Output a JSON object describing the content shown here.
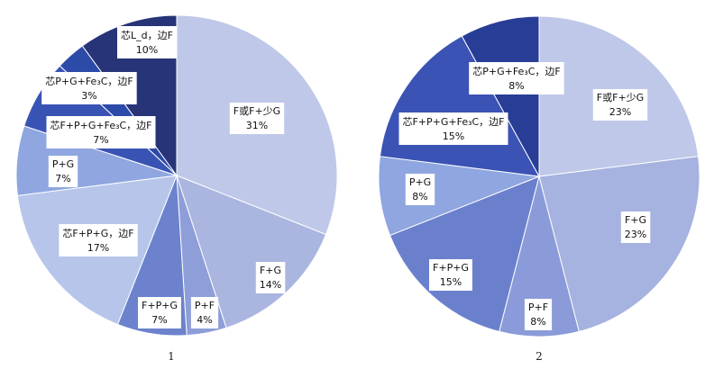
{
  "chart_data": [
    {
      "type": "pie",
      "caption": "1",
      "slices": [
        {
          "label": "F或F+少G",
          "percent_label": "31%",
          "value": 31,
          "color": "#bfc8e8"
        },
        {
          "label": "F+G",
          "percent_label": "14%",
          "value": 14,
          "color": "#aab6e0"
        },
        {
          "label": "P+F",
          "percent_label": "4%",
          "value": 4,
          "color": "#8e9ed9"
        },
        {
          "label": "F+P+G",
          "percent_label": "7%",
          "value": 7,
          "color": "#6c82cd"
        },
        {
          "label": "芯F+P+G，边F",
          "percent_label": "17%",
          "value": 17,
          "color": "#b8c5ea"
        },
        {
          "label": "P+G",
          "percent_label": "7%",
          "value": 7,
          "color": "#8fa6e0"
        },
        {
          "label": "芯F+P+G+Fe₃C，边F",
          "percent_label": "7%",
          "value": 7,
          "color": "#3953b5"
        },
        {
          "label": "芯P+G+Fe₃C，边F",
          "percent_label": "3%",
          "value": 3,
          "color": "#2c4aa8"
        },
        {
          "label": "芯L_d，边F",
          "percent_label": "10%",
          "value": 10,
          "color": "#273477"
        }
      ]
    },
    {
      "type": "pie",
      "caption": "2",
      "slices": [
        {
          "label": "F或F+少G",
          "percent_label": "23%",
          "value": 23,
          "color": "#bfc8e8"
        },
        {
          "label": "F+G",
          "percent_label": "23%",
          "value": 23,
          "color": "#a6b2df"
        },
        {
          "label": "P+F",
          "percent_label": "8%",
          "value": 8,
          "color": "#8b9bd9"
        },
        {
          "label": "F+P+G",
          "percent_label": "15%",
          "value": 15,
          "color": "#6b80cd"
        },
        {
          "label": "P+G",
          "percent_label": "8%",
          "value": 8,
          "color": "#8fa6e0"
        },
        {
          "label": "芯F+P+G+Fe₃C，边F",
          "percent_label": "15%",
          "value": 15,
          "color": "#3a53b4"
        },
        {
          "label": "芯P+G+Fe₃C，边F",
          "percent_label": "8%",
          "value": 8,
          "color": "#283d96"
        }
      ]
    }
  ]
}
